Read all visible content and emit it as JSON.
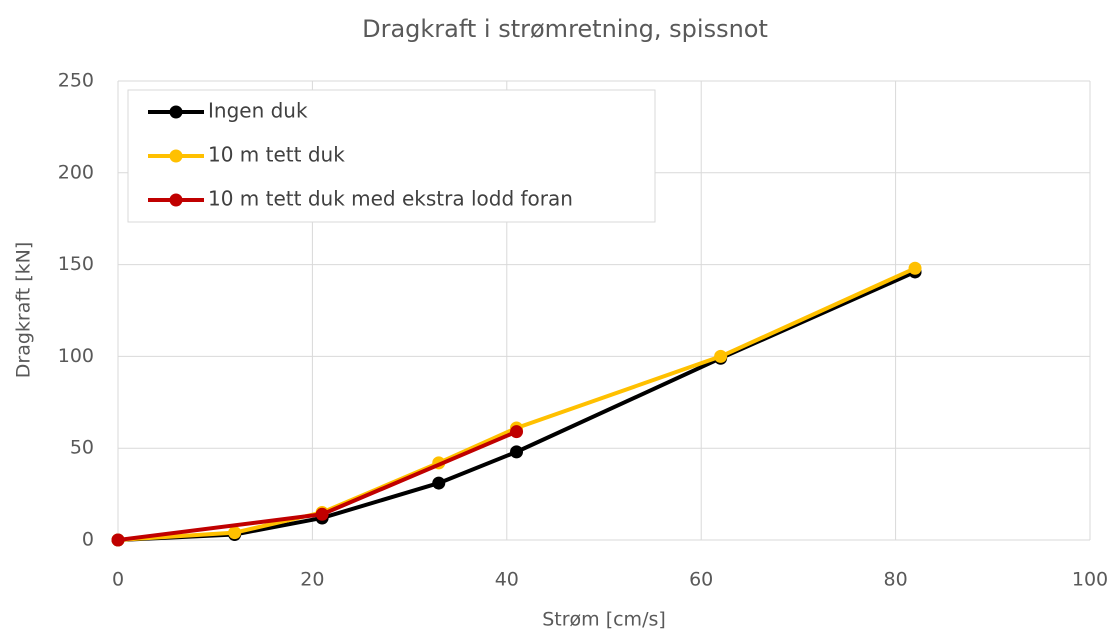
{
  "chart_data": {
    "type": "line",
    "title": "Dragkraft i strømretning, spissnot",
    "xlabel": "Strøm [cm/s]",
    "ylabel": "Dragkraft [kN]",
    "xlim": [
      0,
      100
    ],
    "xticks": [
      0,
      20,
      40,
      60,
      80,
      100
    ],
    "ylim": [
      0,
      250
    ],
    "yticks": [
      0,
      50,
      100,
      150,
      200,
      250
    ],
    "grid": true,
    "legend": "upper left",
    "series": [
      {
        "name": "Ingen duk",
        "color": "#000000",
        "x": [
          0,
          12,
          21,
          33,
          41,
          62,
          82
        ],
        "values": [
          0,
          3,
          12,
          31,
          48,
          99,
          146
        ]
      },
      {
        "name": "10 m tett duk",
        "color": "#ffc000",
        "x": [
          0,
          12,
          21,
          33,
          41,
          62,
          82
        ],
        "values": [
          0,
          4,
          15,
          42,
          61,
          100,
          148
        ]
      },
      {
        "name": "10 m tett duk med ekstra lodd foran",
        "color": "#c00000",
        "x": [
          0,
          21,
          41
        ],
        "values": [
          0,
          14,
          59
        ]
      }
    ]
  }
}
